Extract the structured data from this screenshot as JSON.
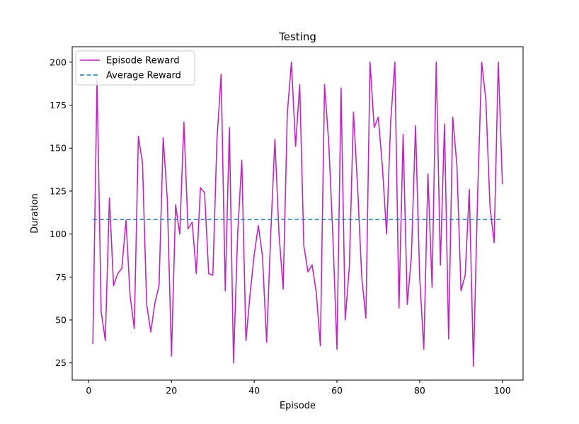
{
  "chart_data": {
    "type": "line",
    "title": "Testing",
    "xlabel": "Episode",
    "ylabel": "Duration",
    "xlim": [
      -4,
      105
    ],
    "ylim": [
      15,
      209
    ],
    "xticks": [
      0,
      20,
      40,
      60,
      80,
      100
    ],
    "yticks": [
      25,
      50,
      75,
      100,
      125,
      150,
      175,
      200
    ],
    "grid": false,
    "legend_position": "top-left",
    "series": [
      {
        "name": "Episode Reward",
        "style": "solid",
        "color": "#bf26bf",
        "x": [
          1,
          2,
          3,
          4,
          5,
          6,
          7,
          8,
          9,
          10,
          11,
          12,
          13,
          14,
          15,
          16,
          17,
          18,
          19,
          20,
          21,
          22,
          23,
          24,
          25,
          26,
          27,
          28,
          29,
          30,
          31,
          32,
          33,
          34,
          35,
          36,
          37,
          38,
          39,
          40,
          41,
          42,
          43,
          44,
          45,
          46,
          47,
          48,
          49,
          50,
          51,
          52,
          53,
          54,
          55,
          56,
          57,
          58,
          59,
          60,
          61,
          62,
          63,
          64,
          65,
          66,
          67,
          68,
          69,
          70,
          71,
          72,
          73,
          74,
          75,
          76,
          77,
          78,
          79,
          80,
          81,
          82,
          83,
          84,
          85,
          86,
          87,
          88,
          89,
          90,
          91,
          92,
          93,
          94,
          95,
          96,
          97,
          98,
          99,
          100
        ],
        "values": [
          36,
          190,
          55,
          38,
          121,
          70,
          77,
          80,
          108,
          64,
          45,
          157,
          141,
          59,
          43,
          60,
          70,
          156,
          120,
          29,
          117,
          100,
          165,
          103,
          107,
          77,
          127,
          124,
          77,
          76,
          155,
          193,
          67,
          162,
          25,
          100,
          143,
          38,
          65,
          88,
          105,
          87,
          37,
          100,
          155,
          100,
          68,
          170,
          200,
          151,
          187,
          93,
          78,
          82,
          66,
          35,
          187,
          154,
          100,
          33,
          185,
          50,
          81,
          171,
          127,
          75,
          51,
          200,
          162,
          168,
          139,
          100,
          166,
          200,
          57,
          158,
          59,
          87,
          163,
          75,
          33,
          135,
          69,
          200,
          82,
          164,
          39,
          168,
          140,
          67,
          76,
          126,
          23,
          122,
          200,
          178,
          116,
          95,
          200,
          129
        ]
      },
      {
        "name": "Average Reward",
        "style": "dashed",
        "color": "#1f77b4",
        "x": [
          1,
          100
        ],
        "values": [
          108.5,
          108.5
        ]
      }
    ]
  }
}
